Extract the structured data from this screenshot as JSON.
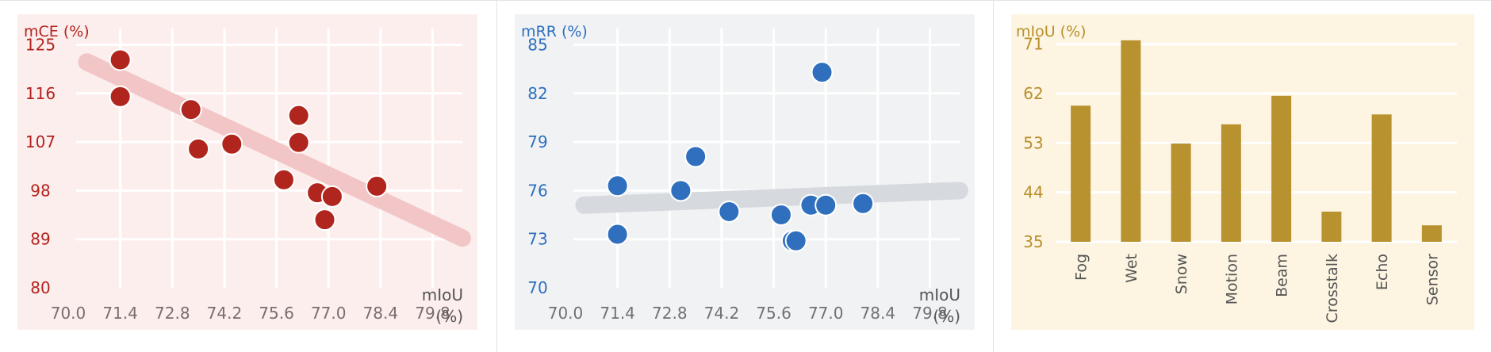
{
  "chart_data": [
    {
      "type": "scatter",
      "title": "",
      "ylabel": "mCE (%)",
      "xlabel_lines": [
        "mIoU",
        "(%)"
      ],
      "xlim": [
        70.0,
        80.6
      ],
      "ylim": [
        80,
        128
      ],
      "xticks": [
        "70.0",
        "71.4",
        "72.8",
        "74.2",
        "75.6",
        "77.0",
        "78.4",
        "79.8"
      ],
      "yticks": [
        "80",
        "89",
        "98",
        "107",
        "116",
        "125"
      ],
      "grid": true,
      "colors": {
        "background": "#fdeeee",
        "grid": "#ffffff",
        "label": "#b3231e",
        "tick": "#7a6d6d",
        "point": "#b0251d",
        "trend": "#f2c6c6"
      },
      "points": [
        {
          "x": 71.4,
          "y": 122.2
        },
        {
          "x": 71.4,
          "y": 115.4
        },
        {
          "x": 73.3,
          "y": 113.0
        },
        {
          "x": 73.5,
          "y": 105.7
        },
        {
          "x": 74.4,
          "y": 106.6
        },
        {
          "x": 75.8,
          "y": 100.0
        },
        {
          "x": 76.2,
          "y": 111.9
        },
        {
          "x": 76.2,
          "y": 106.9
        },
        {
          "x": 76.7,
          "y": 97.6
        },
        {
          "x": 77.1,
          "y": 96.9
        },
        {
          "x": 76.9,
          "y": 92.6
        },
        {
          "x": 78.3,
          "y": 98.8
        }
      ],
      "trend": [
        {
          "x": 70.5,
          "y": 121.8
        },
        {
          "x": 80.6,
          "y": 89.2
        }
      ]
    },
    {
      "type": "scatter",
      "title": "",
      "ylabel": "mRR (%)",
      "xlabel_lines": [
        "mIoU",
        "(%)"
      ],
      "xlim": [
        70.0,
        80.6
      ],
      "ylim": [
        70,
        86
      ],
      "xticks": [
        "70.0",
        "71.4",
        "72.8",
        "74.2",
        "75.6",
        "77.0",
        "78.4",
        "79.8"
      ],
      "yticks": [
        "70",
        "73",
        "76",
        "79",
        "82",
        "85"
      ],
      "grid": true,
      "colors": {
        "background": "#f1f2f4",
        "grid": "#ffffff",
        "label": "#2e6fbe",
        "tick": "#707176",
        "point": "#2f6fbe",
        "trend": "#d6dadf"
      },
      "points": [
        {
          "x": 71.4,
          "y": 76.3
        },
        {
          "x": 71.4,
          "y": 73.3
        },
        {
          "x": 73.1,
          "y": 76.0
        },
        {
          "x": 73.5,
          "y": 78.1
        },
        {
          "x": 74.4,
          "y": 74.7
        },
        {
          "x": 75.8,
          "y": 74.5
        },
        {
          "x": 76.1,
          "y": 72.9
        },
        {
          "x": 76.2,
          "y": 72.9
        },
        {
          "x": 76.6,
          "y": 75.1
        },
        {
          "x": 77.0,
          "y": 75.1
        },
        {
          "x": 76.9,
          "y": 83.3
        },
        {
          "x": 78.0,
          "y": 75.2
        }
      ],
      "trend": [
        {
          "x": 70.5,
          "y": 75.1
        },
        {
          "x": 80.6,
          "y": 76.0
        }
      ]
    },
    {
      "type": "bar",
      "title": "",
      "ylabel": "mIoU (%)",
      "ylim": [
        35,
        75
      ],
      "yticks": [
        "35",
        "44",
        "53",
        "62",
        "71"
      ],
      "grid": true,
      "categories": [
        "Fog",
        "Wet",
        "Snow",
        "Motion",
        "Beam",
        "Crosstalk",
        "Echo",
        "Sensor"
      ],
      "values": [
        59.8,
        71.7,
        52.9,
        56.4,
        61.6,
        40.5,
        58.2,
        38.0
      ],
      "colors": {
        "background": "#fdf5e2",
        "grid": "#ffffff",
        "label": "#b88f2c",
        "tick": "#98875a",
        "bar": "#b99230"
      }
    }
  ]
}
